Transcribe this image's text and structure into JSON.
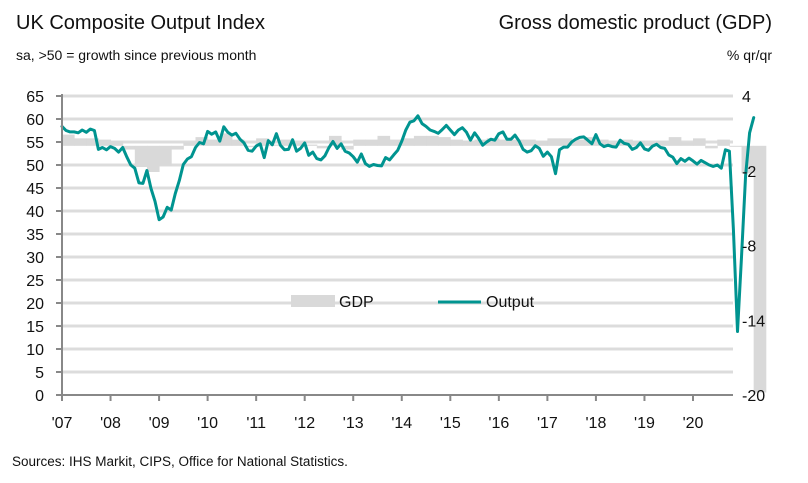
{
  "chart_data": {
    "type": "line",
    "title": "UK Composite Output Index",
    "subtitle": "sa, >50 = growth since previous month",
    "right_title": "Gross domestic product (GDP)",
    "right_subtitle": "% qr/qr",
    "source": "Sources: IHS Markit, CIPS, Office for National Statistics.",
    "left_axis": {
      "ylim": [
        0,
        65
      ],
      "ticks": [
        0,
        5,
        10,
        15,
        20,
        25,
        30,
        35,
        40,
        45,
        50,
        55,
        60,
        65
      ]
    },
    "right_axis": {
      "ylim": [
        -20,
        4
      ],
      "ticks": [
        -20,
        -14,
        -8,
        -2,
        4
      ]
    },
    "x_ticks": [
      "'07",
      "'08",
      "'09",
      "'10",
      "'11",
      "'12",
      "'13",
      "'14",
      "'15",
      "'16",
      "'17",
      "'18",
      "'19",
      "'20"
    ],
    "grid": true,
    "legend": {
      "placement": "center",
      "entries": [
        {
          "name": "GDP",
          "type": "bar",
          "color": "#d9d9d9"
        },
        {
          "name": "Output",
          "type": "line",
          "color": "#009490"
        }
      ]
    },
    "series": [
      {
        "name": "Output",
        "axis": "left",
        "color": "#009490",
        "start": "2007-01",
        "frequency": "monthly",
        "values": [
          58.4,
          57.5,
          57.2,
          57.2,
          57.0,
          57.6,
          57.1,
          57.8,
          57.5,
          53.4,
          53.8,
          53.3,
          54.0,
          53.6,
          52.8,
          53.8,
          51.8,
          50.0,
          49.3,
          46.1,
          46.0,
          48.8,
          44.9,
          42.1,
          38.1,
          38.7,
          40.8,
          40.2,
          43.8,
          46.6,
          50.1,
          51.3,
          51.8,
          53.8,
          54.9,
          54.6,
          57.3,
          56.7,
          57.2,
          55.2,
          58.3,
          57.1,
          56.5,
          56.9,
          55.6,
          54.8,
          53.2,
          53.0,
          54.1,
          54.6,
          51.6,
          55.3,
          54.4,
          56.8,
          54.3,
          53.3,
          53.4,
          55.5,
          53.0,
          53.6,
          54.8,
          52.1,
          52.8,
          51.4,
          51.1,
          52.0,
          53.8,
          55.1,
          53.6,
          54.6,
          53.0,
          52.6,
          51.8,
          50.6,
          52.4,
          50.3,
          49.7,
          50.1,
          49.9,
          49.8,
          51.6,
          51.1,
          52.2,
          53.2,
          55.2,
          57.6,
          59.3,
          59.6,
          60.7,
          59.0,
          58.4,
          57.6,
          57.3,
          56.9,
          57.7,
          58.6,
          57.6,
          56.6,
          57.6,
          58.1,
          57.1,
          55.4,
          57.0,
          55.8,
          54.3,
          55.0,
          55.6,
          55.4,
          56.8,
          57.2,
          55.6,
          55.6,
          56.5,
          55.2,
          53.4,
          52.8,
          53.1,
          54.2,
          53.6,
          51.9,
          52.8,
          51.8,
          48.1,
          53.3,
          53.9,
          53.9,
          55.0,
          55.6,
          56.0,
          56.1,
          55.4,
          54.6,
          56.6,
          54.6,
          54.0,
          54.3,
          54.0,
          53.9,
          55.4,
          54.7,
          54.5,
          53.4,
          53.8,
          54.8,
          53.5,
          53.2,
          54.1,
          54.5,
          53.8,
          53.6,
          52.2,
          51.7,
          50.3,
          51.4,
          50.8,
          51.5,
          50.9,
          50.2,
          51.0,
          50.5,
          50.0,
          49.7,
          50.0,
          49.3,
          53.3,
          53.0,
          36.0,
          13.8,
          30.0,
          47.7,
          57.0,
          60.3
        ]
      },
      {
        "name": "GDP",
        "axis": "right",
        "color": "#d9d9d9",
        "start": "2007-Q1",
        "frequency": "quarterly",
        "values": [
          0.9,
          0.6,
          0.6,
          0.5,
          0.4,
          -0.3,
          -1.7,
          -2.1,
          -1.6,
          -0.3,
          0.3,
          0.7,
          0.5,
          1.0,
          0.5,
          -0.1,
          0.6,
          0.1,
          0.5,
          0.2,
          0.1,
          -0.2,
          0.8,
          -0.3,
          0.5,
          0.5,
          0.8,
          0.5,
          0.6,
          0.8,
          0.8,
          0.7,
          0.5,
          0.4,
          0.5,
          0.6,
          0.5,
          0.5,
          0.5,
          0.4,
          0.6,
          0.6,
          0.5,
          0.7,
          0.5,
          0.2,
          0.5,
          0.4,
          0.2,
          0.4,
          0.7,
          0.3,
          0.6,
          -0.2,
          0.5,
          0.0,
          -2.2,
          -19.8
        ]
      }
    ]
  }
}
